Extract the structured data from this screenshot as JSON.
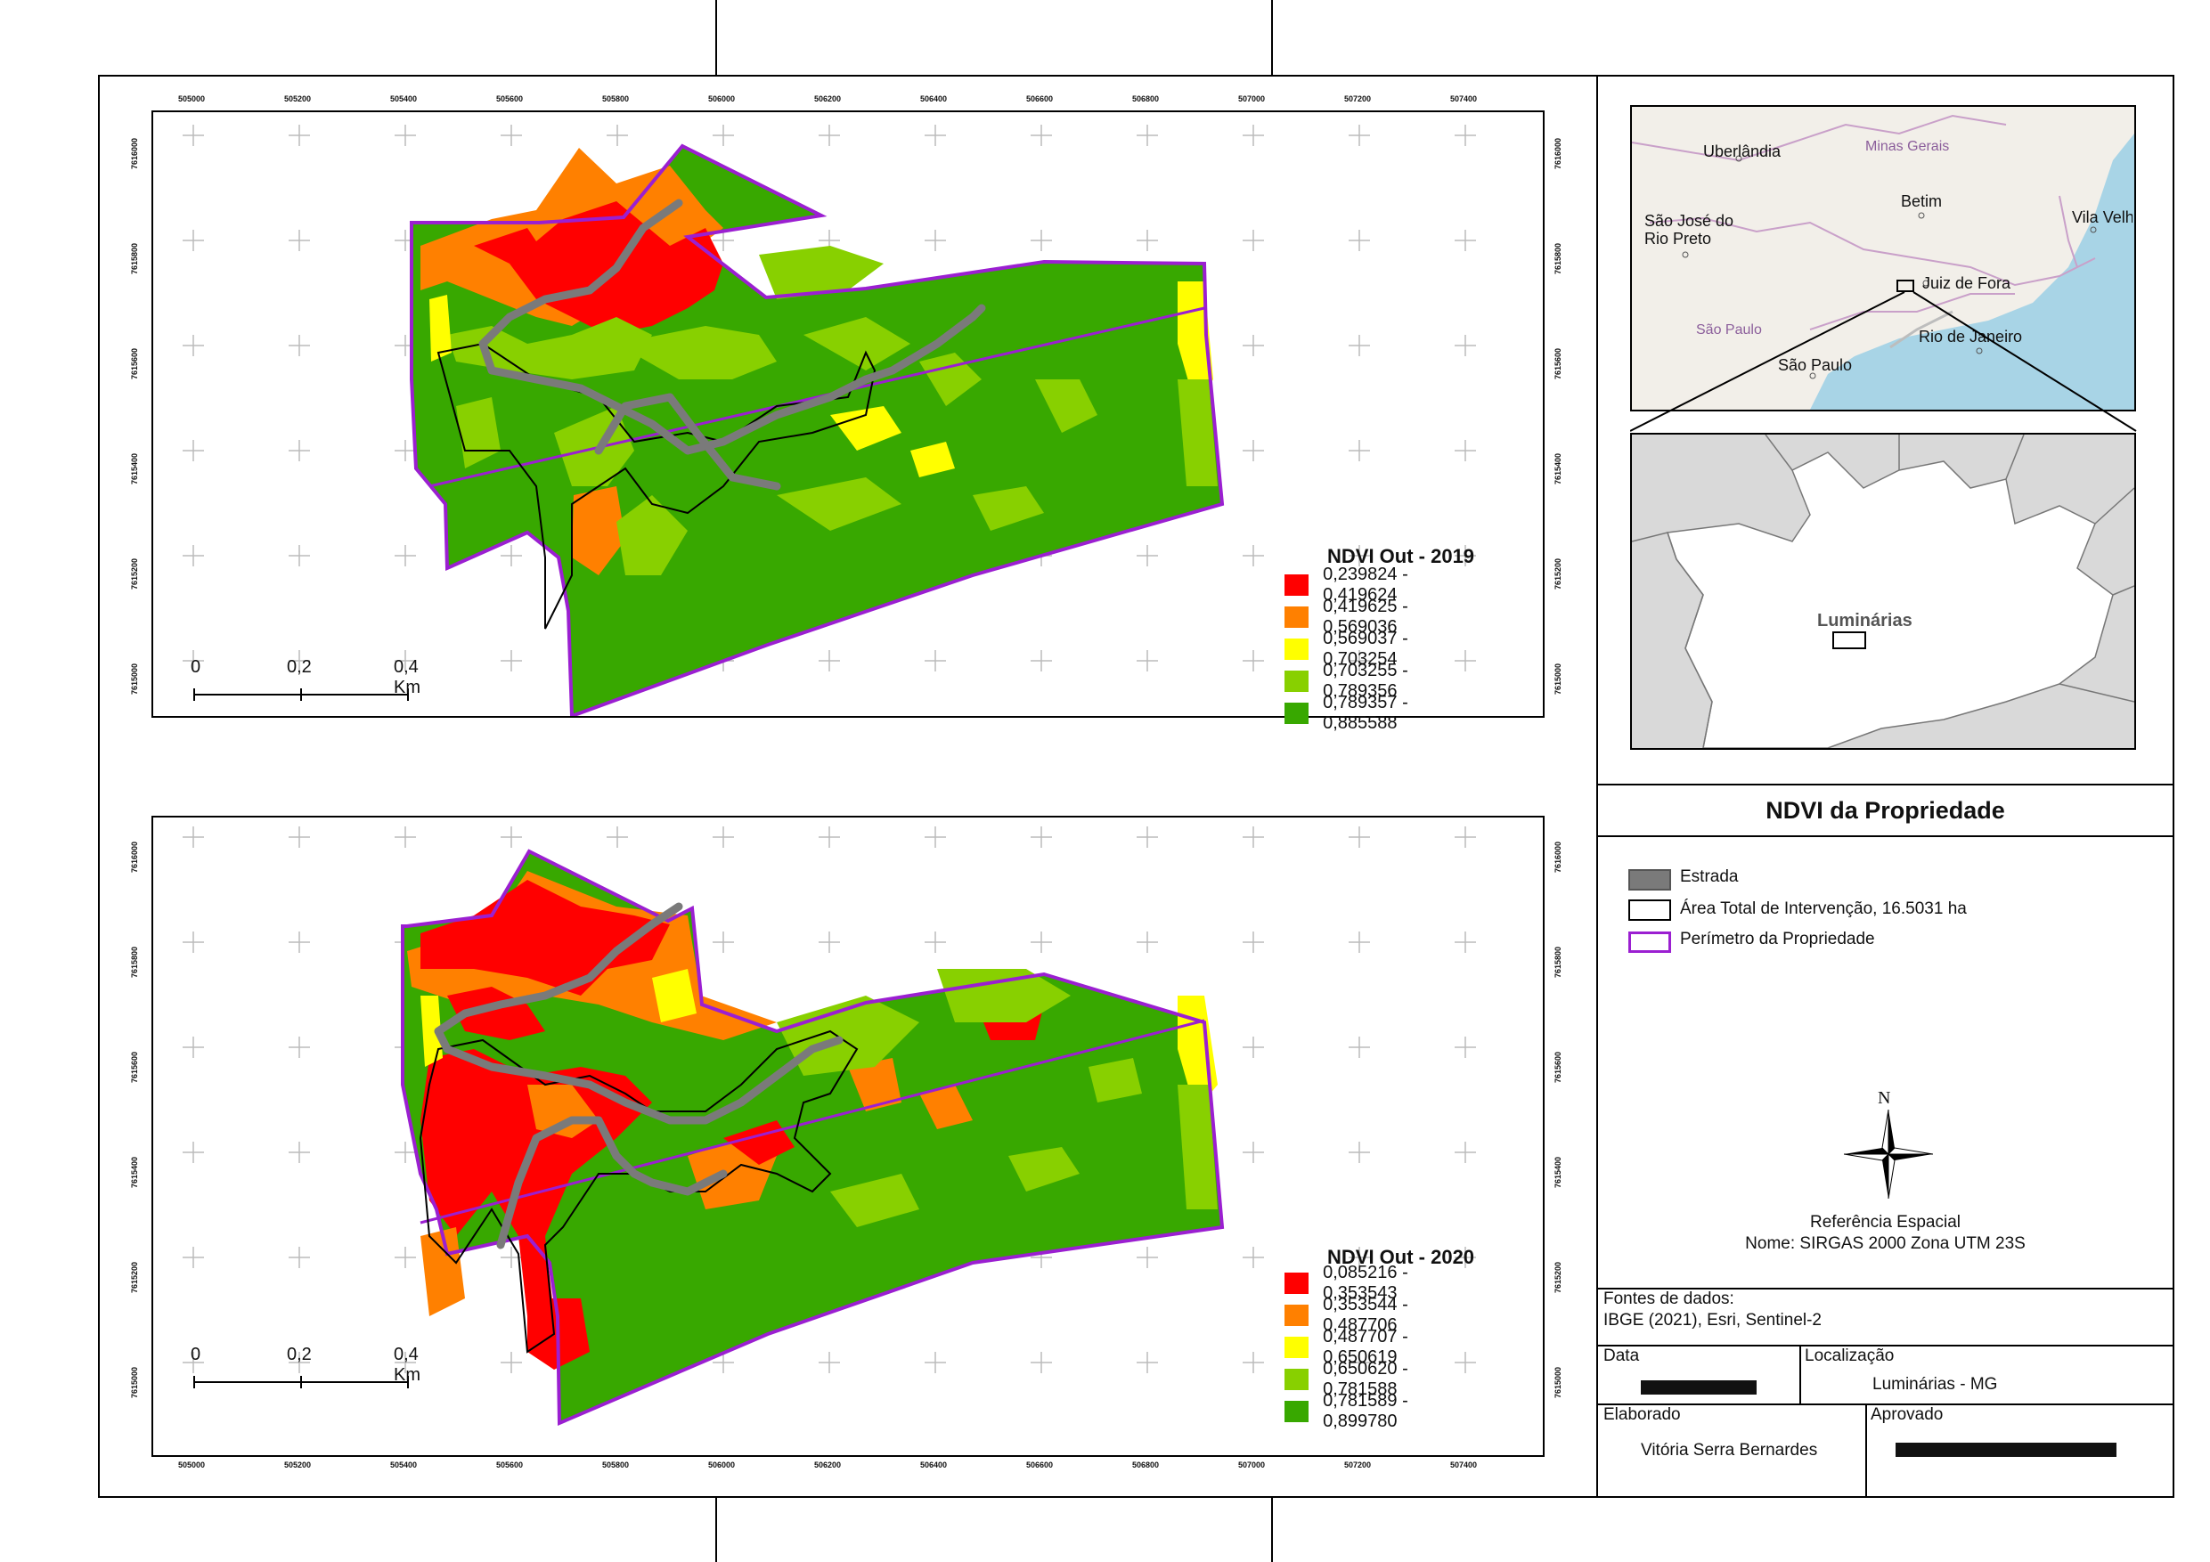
{
  "layout_title": "NDVI da Propriedade",
  "map_2019": {
    "legend_title": "NDVI Out - 2019",
    "classes": [
      {
        "label": "0,239824 - 0,419624",
        "color": "#ff0000"
      },
      {
        "label": "0,419625 - 0,569036",
        "color": "#ff8000"
      },
      {
        "label": "0,569037 - 0,703254",
        "color": "#ffff00"
      },
      {
        "label": "0,703255 - 0,789356",
        "color": "#88d000"
      },
      {
        "label": "0,789357 - 0,885588",
        "color": "#38a800"
      }
    ]
  },
  "map_2020": {
    "legend_title": "NDVI Out - 2020",
    "classes": [
      {
        "label": "0,085216 - 0,353543",
        "color": "#ff0000"
      },
      {
        "label": "0,353544 - 0,487706",
        "color": "#ff8000"
      },
      {
        "label": "0,487707 - 0,650619",
        "color": "#ffff00"
      },
      {
        "label": "0,650620 - 0,781588",
        "color": "#88d000"
      },
      {
        "label": "0,781589 - 0,899780",
        "color": "#38a800"
      }
    ]
  },
  "scale_bar": {
    "labels": [
      "0",
      "0,2",
      "0,4 Km"
    ]
  },
  "x_ticks": [
    "505000",
    "505200",
    "505400",
    "505600",
    "505800",
    "506000",
    "506200",
    "506400",
    "506600",
    "506800",
    "507000",
    "507200",
    "507400"
  ],
  "y_ticks": [
    "7616000",
    "7615800",
    "7615600",
    "7615400",
    "7615200",
    "7615000"
  ],
  "inset_cities": {
    "uberlandia": "Uberlândia",
    "minas": "Minas Gerais",
    "betim": "Betim",
    "sjrp": "São José do\nRio Preto",
    "vila": "Vila Velha",
    "juiz": "Juiz de Fora",
    "sp_state": "São Paulo",
    "rio": "Rio de Janeiro",
    "sp_city": "São Paulo"
  },
  "locator_label": "Luminárias",
  "symbol_legend": {
    "road": "Estrada",
    "area": "Área Total de Intervenção, 16.5031 ha",
    "perimeter": "Perímetro da Propriedade"
  },
  "north": "N",
  "ref_title": "Referência Espacial",
  "ref_name": "Nome: SIRGAS 2000 Zona UTM 23S",
  "sources_title": "Fontes de dados:",
  "sources_text": "IBGE (2021), Esri, Sentinel-2",
  "date_label": "Data",
  "location_label": "Localização",
  "location_value": "Luminárias - MG",
  "author_label": "Elaborado",
  "author_value": "Vitória Serra Bernardes",
  "approved_label": "Aprovado",
  "colors": {
    "road": "#7a7a7a",
    "perimeter": "#9b1fd1",
    "ocean": "#a8d4e6",
    "land": "#f2efe9"
  }
}
